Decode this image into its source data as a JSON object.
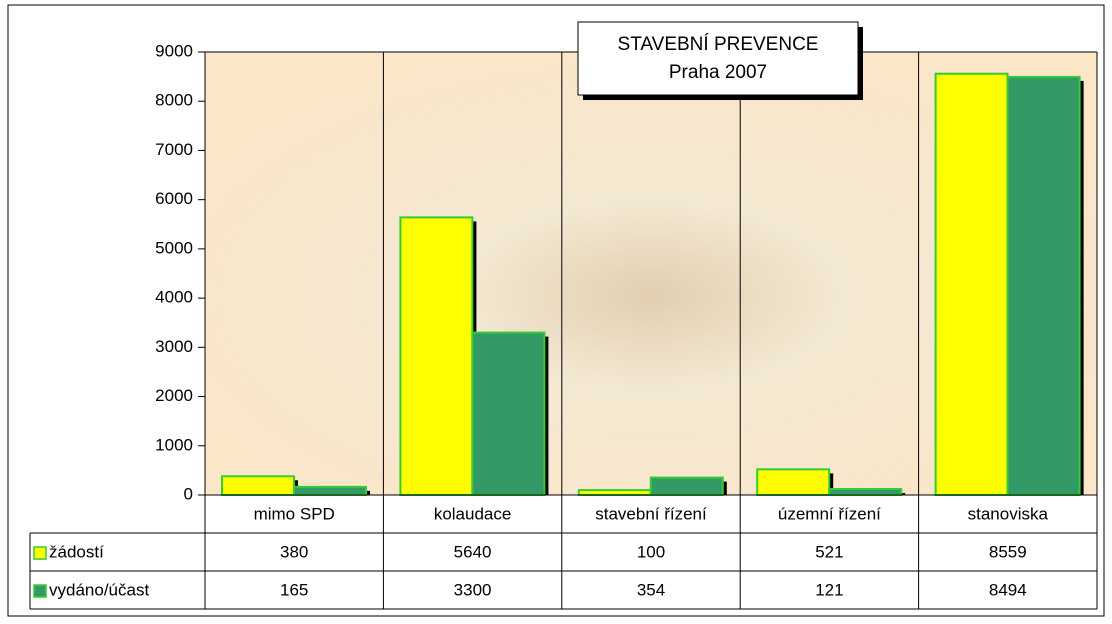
{
  "chart_data": {
    "type": "bar",
    "title": "STAVEBNÍ PREVENCE",
    "subtitle": "Praha 2007",
    "categories": [
      "mimo SPD",
      "kolaudace",
      "stavební řízení",
      "územní řízení",
      "stanoviska"
    ],
    "series": [
      {
        "name": "žádostí",
        "color": "#ffff00",
        "values": [
          380,
          5640,
          100,
          521,
          8559
        ]
      },
      {
        "name": "vydáno/účast",
        "color": "#339966",
        "values": [
          165,
          3300,
          354,
          121,
          8494
        ]
      }
    ],
    "ylim": [
      0,
      9000
    ],
    "yticks": [
      0,
      1000,
      2000,
      3000,
      4000,
      5000,
      6000,
      7000,
      8000,
      9000
    ],
    "grid": false
  }
}
